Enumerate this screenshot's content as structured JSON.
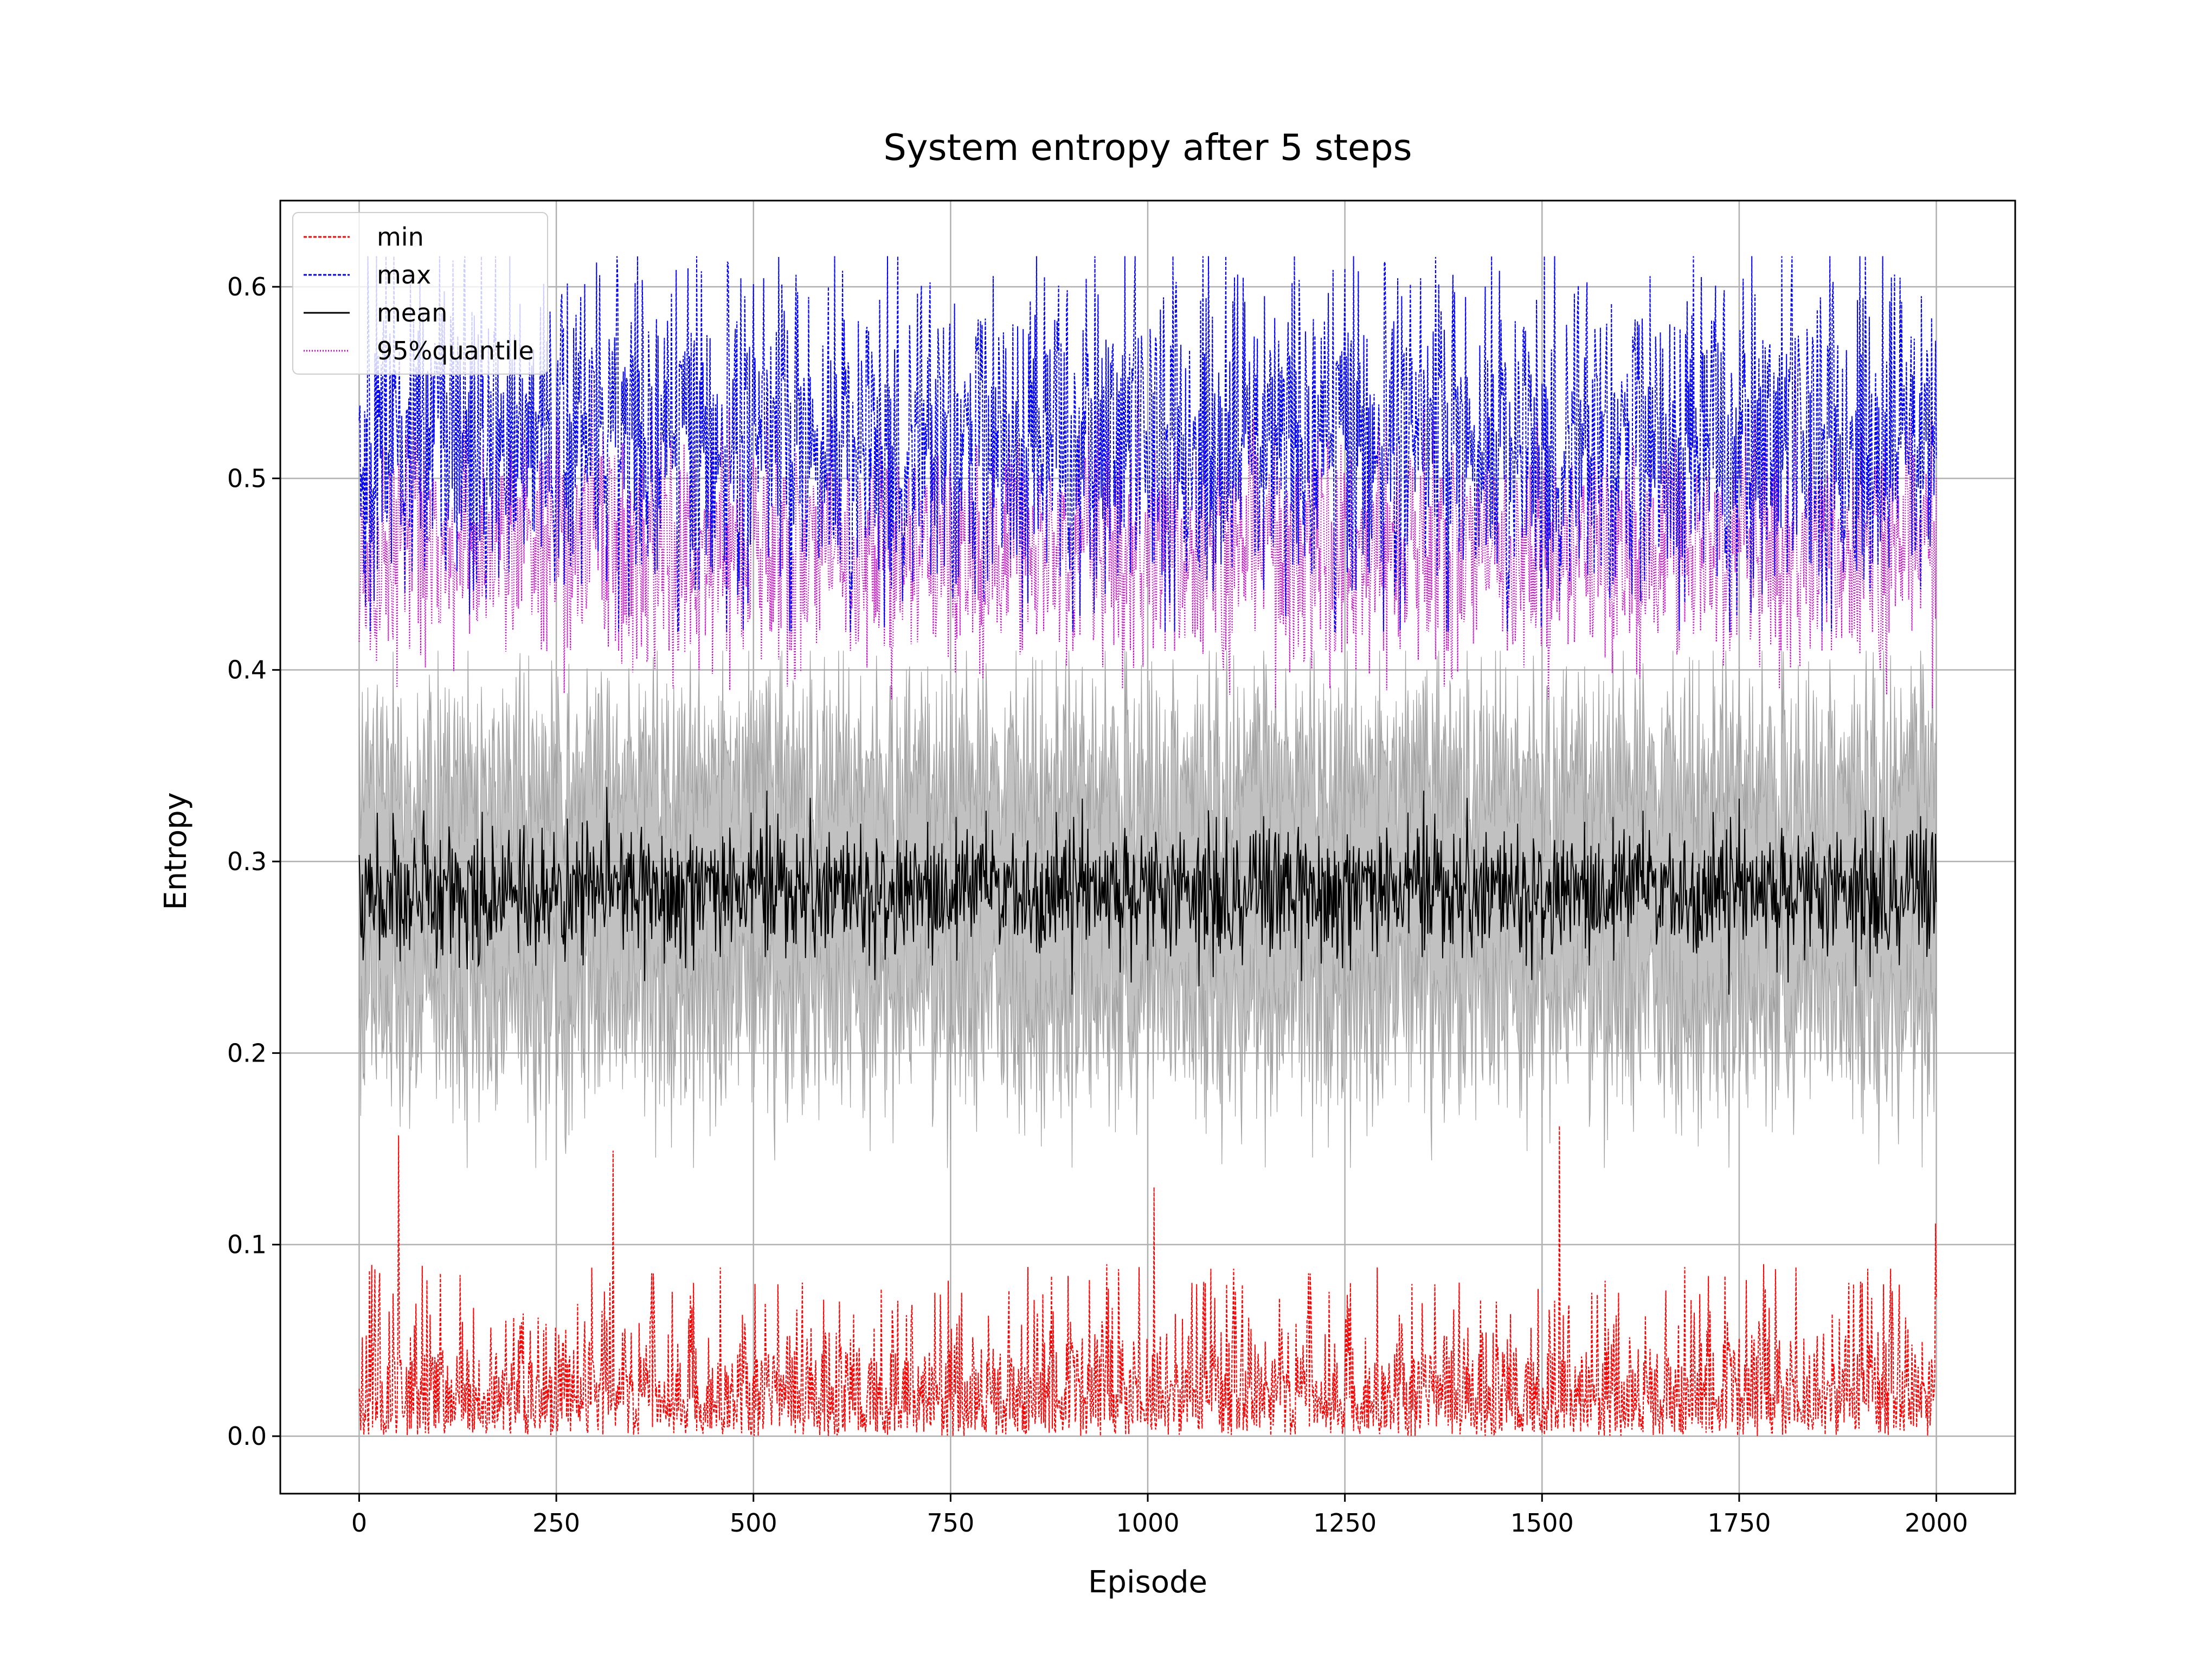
{
  "chart_data": {
    "type": "line",
    "title": "System entropy after 5 steps",
    "xlabel": "Episode",
    "ylabel": "Entropy",
    "xlim": [
      -100,
      2100
    ],
    "ylim": [
      -0.03,
      0.645
    ],
    "xticks": [
      0,
      250,
      500,
      750,
      1000,
      1250,
      1500,
      1750,
      2000
    ],
    "xtick_labels": [
      "0",
      "250",
      "500",
      "750",
      "1000",
      "1250",
      "1500",
      "1750",
      "2000"
    ],
    "yticks": [
      0.0,
      0.1,
      0.2,
      0.3,
      0.4,
      0.5,
      0.6
    ],
    "ytick_labels": [
      "0.0",
      "0.1",
      "0.2",
      "0.3",
      "0.4",
      "0.5",
      "0.6"
    ],
    "grid": true,
    "legend_position": "top-left",
    "episodes": 2000,
    "x_range": [
      0,
      2000
    ],
    "series": [
      {
        "name": "min",
        "color": "#ff0000",
        "style": "dashed",
        "typical_range": [
          0.0,
          0.08
        ],
        "max_value": 0.162,
        "peaks": [
          [
            50,
            0.157
          ],
          [
            322,
            0.149
          ],
          [
            1008,
            0.13
          ],
          [
            1522,
            0.162
          ],
          [
            1999,
            0.111
          ]
        ]
      },
      {
        "name": "max",
        "color": "#0000ff",
        "style": "dashed",
        "typical_range": [
          0.45,
          0.6
        ],
        "max_value": 0.616,
        "min_value": 0.42
      },
      {
        "name": "mean",
        "color": "#000000",
        "style": "solid",
        "typical_range": [
          0.25,
          0.32
        ],
        "mean_value": 0.285
      },
      {
        "name": "95%quantile",
        "color": "#cc00cc",
        "style": "dotted",
        "typical_range": [
          0.42,
          0.55
        ],
        "min_value": 0.38
      }
    ],
    "band": {
      "color": "#a0a0a0",
      "description": "mean ± std",
      "typical_range": [
        0.19,
        0.38
      ]
    }
  }
}
